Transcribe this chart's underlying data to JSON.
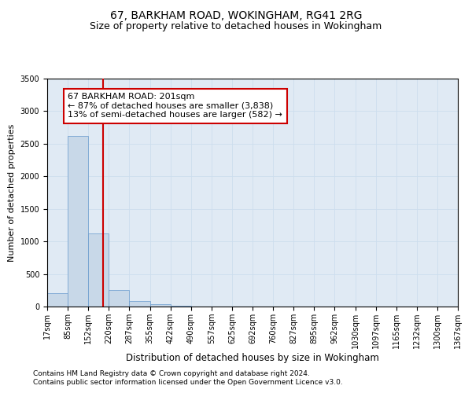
{
  "title": "67, BARKHAM ROAD, WOKINGHAM, RG41 2RG",
  "subtitle": "Size of property relative to detached houses in Wokingham",
  "xlabel": "Distribution of detached houses by size in Wokingham",
  "ylabel": "Number of detached properties",
  "bar_values": [
    200,
    2620,
    1120,
    255,
    80,
    42,
    18,
    0,
    0,
    0,
    0,
    0,
    0,
    0,
    0,
    0,
    0,
    0,
    0,
    0
  ],
  "bin_edges": [
    17,
    85,
    152,
    220,
    287,
    355,
    422,
    490,
    557,
    625,
    692,
    760,
    827,
    895,
    962,
    1030,
    1097,
    1165,
    1232,
    1300,
    1367
  ],
  "bar_color": "#c8d8e8",
  "bar_edge_color": "#6699cc",
  "grid_color": "#ccddee",
  "background_color": "#e0eaf4",
  "vline_x": 201,
  "vline_color": "#cc0000",
  "annotation_text": "67 BARKHAM ROAD: 201sqm\n← 87% of detached houses are smaller (3,838)\n13% of semi-detached houses are larger (582) →",
  "annotation_box_color": "white",
  "annotation_box_edge_color": "#cc0000",
  "ylim": [
    0,
    3500
  ],
  "yticks": [
    0,
    500,
    1000,
    1500,
    2000,
    2500,
    3000,
    3500
  ],
  "footnote1": "Contains HM Land Registry data © Crown copyright and database right 2024.",
  "footnote2": "Contains public sector information licensed under the Open Government Licence v3.0.",
  "title_fontsize": 10,
  "subtitle_fontsize": 9,
  "xlabel_fontsize": 8.5,
  "ylabel_fontsize": 8,
  "tick_fontsize": 7,
  "annotation_fontsize": 8,
  "footnote_fontsize": 6.5
}
